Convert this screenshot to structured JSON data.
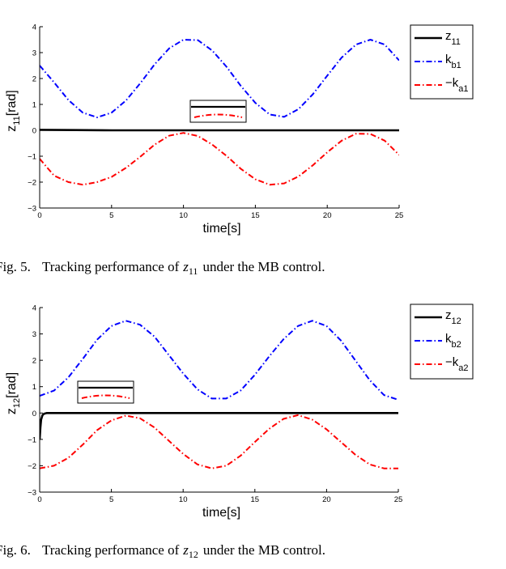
{
  "chart_data": [
    {
      "type": "line",
      "xlabel": "time[s]",
      "ylabel_main": "z",
      "ylabel_sub": "11",
      "ylabel_unit": "[rad]",
      "xlim": [
        0,
        25
      ],
      "ylim": [
        -3,
        4
      ],
      "x_ticks": [
        0,
        5,
        10,
        15,
        20,
        25
      ],
      "y_ticks": [
        -3,
        -2,
        -1,
        0,
        1,
        2,
        3,
        4
      ],
      "grid": false,
      "legend_position": "outside-right",
      "inset": true,
      "caption": {
        "prefix": "Fig. 5.",
        "text_before": "Tracking performance of",
        "var": "z",
        "sub": "11",
        "text_after": "under the MB control."
      },
      "series": [
        {
          "name_main": "z",
          "name_sub": "11",
          "color": "#000000",
          "style": "solid",
          "x": [
            0,
            2.5,
            5,
            7.5,
            10,
            12.5,
            15,
            17.5,
            20,
            22.5,
            25
          ],
          "y": [
            0.02,
            0.01,
            0.0,
            0.0,
            0.0,
            0.0,
            0.0,
            0.0,
            0.0,
            0.0,
            0.0
          ]
        },
        {
          "name_main": "k",
          "name_sub": "b1",
          "color": "#0000ff",
          "style": "dashdot",
          "x": [
            0,
            1,
            2,
            3,
            4,
            5,
            6,
            7,
            8,
            9,
            10,
            11,
            12,
            13,
            14,
            15,
            16,
            17,
            18,
            19,
            20,
            21,
            22,
            23,
            24,
            25
          ],
          "y": [
            2.5,
            1.85,
            1.17,
            0.68,
            0.5,
            0.68,
            1.15,
            1.82,
            2.55,
            3.16,
            3.5,
            3.48,
            3.08,
            2.45,
            1.71,
            1.06,
            0.61,
            0.52,
            0.82,
            1.39,
            2.11,
            2.81,
            3.31,
            3.5,
            3.31,
            2.7
          ]
        },
        {
          "name_main": "−k",
          "name_sub": "a1",
          "color": "#ff0000",
          "style": "dashdot",
          "x": [
            0,
            1,
            2,
            3,
            4,
            5,
            6,
            7,
            8,
            9,
            10,
            11,
            12,
            13,
            14,
            15,
            16,
            17,
            18,
            19,
            20,
            21,
            22,
            23,
            24,
            25
          ],
          "y": [
            -1.1,
            -1.75,
            -2.0,
            -2.1,
            -2.0,
            -1.8,
            -1.45,
            -1.02,
            -0.55,
            -0.21,
            -0.1,
            -0.22,
            -0.55,
            -0.99,
            -1.49,
            -1.89,
            -2.1,
            -2.05,
            -1.78,
            -1.35,
            -0.85,
            -0.4,
            -0.13,
            -0.14,
            -0.4,
            -0.95
          ]
        }
      ]
    },
    {
      "type": "line",
      "xlabel": "time[s]",
      "ylabel_main": "z",
      "ylabel_sub": "12",
      "ylabel_unit": "[rad]",
      "xlim": [
        0,
        25
      ],
      "ylim": [
        -3,
        4
      ],
      "x_ticks": [
        0,
        5,
        10,
        15,
        20,
        25
      ],
      "y_ticks": [
        -3,
        -2,
        -1,
        0,
        1,
        2,
        3,
        4
      ],
      "grid": false,
      "legend_position": "outside-right",
      "inset": true,
      "caption": {
        "prefix": "Fig. 6.",
        "text_before": "Tracking performance of",
        "var": "z",
        "sub": "12",
        "text_after": "under the MB control."
      },
      "series": [
        {
          "name_main": "z",
          "name_sub": "12",
          "color": "#000000",
          "style": "solid",
          "x": [
            0,
            0.05,
            0.1,
            0.2,
            0.3,
            0.5,
            1,
            2,
            5,
            10,
            15,
            20,
            25
          ],
          "y": [
            -1.0,
            -0.55,
            -0.25,
            -0.08,
            -0.03,
            0.0,
            0.0,
            0.0,
            0.0,
            0.0,
            0.0,
            0.0,
            0.0
          ]
        },
        {
          "name_main": "k",
          "name_sub": "b2",
          "color": "#0000ff",
          "style": "dashdot",
          "x": [
            0,
            1,
            2,
            3,
            4,
            5,
            6,
            7,
            8,
            9,
            10,
            11,
            12,
            13,
            14,
            15,
            16,
            17,
            18,
            19,
            20,
            21,
            22,
            23,
            24,
            25
          ],
          "y": [
            0.65,
            0.85,
            1.35,
            2.05,
            2.78,
            3.3,
            3.5,
            3.35,
            2.9,
            2.2,
            1.5,
            0.9,
            0.55,
            0.55,
            0.85,
            1.45,
            2.15,
            2.8,
            3.3,
            3.5,
            3.3,
            2.75,
            2.0,
            1.25,
            0.68,
            0.5
          ]
        },
        {
          "name_main": "−k",
          "name_sub": "a2",
          "color": "#ff0000",
          "style": "dashdot",
          "x": [
            0,
            1,
            2,
            3,
            4,
            5,
            6,
            7,
            8,
            9,
            10,
            11,
            12,
            13,
            14,
            15,
            16,
            17,
            18,
            19,
            20,
            21,
            22,
            23,
            24,
            25
          ],
          "y": [
            -2.1,
            -2.0,
            -1.7,
            -1.2,
            -0.65,
            -0.28,
            -0.1,
            -0.2,
            -0.55,
            -1.05,
            -1.55,
            -1.95,
            -2.1,
            -2.0,
            -1.62,
            -1.1,
            -0.6,
            -0.22,
            -0.08,
            -0.25,
            -0.62,
            -1.1,
            -1.58,
            -1.95,
            -2.1,
            -2.1
          ]
        }
      ]
    }
  ]
}
